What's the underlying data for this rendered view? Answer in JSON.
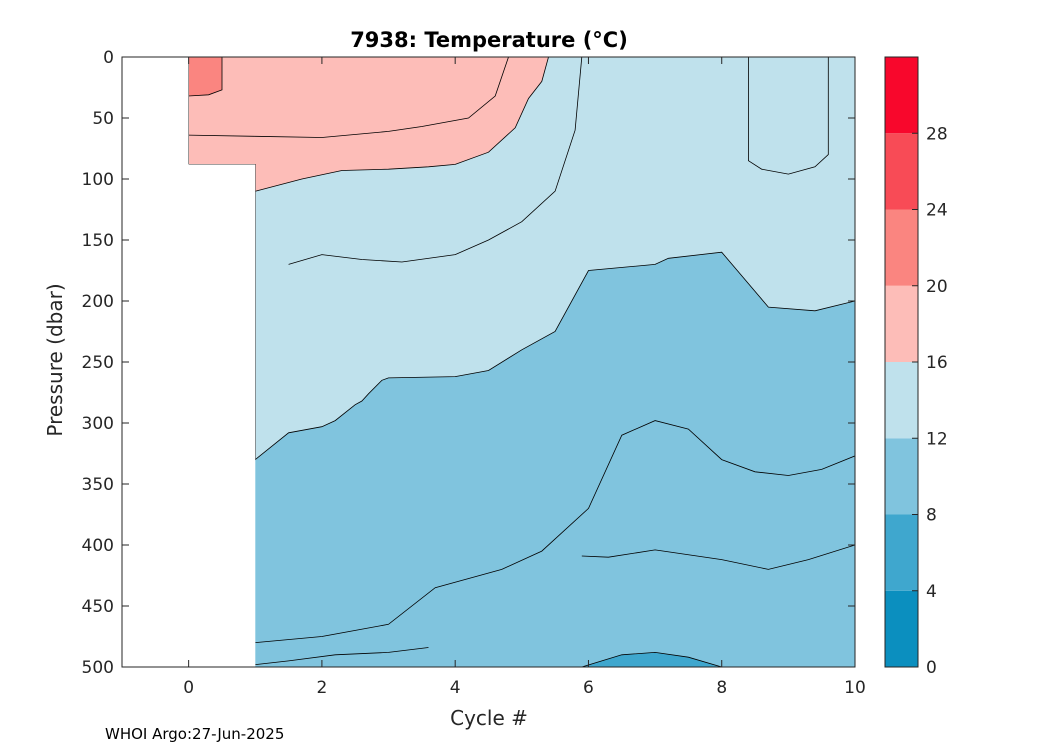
{
  "chart_data": {
    "type": "contour",
    "title": "7938:  Temperature (°C)",
    "xlabel": "Cycle #",
    "ylabel": "Pressure (dbar)",
    "xlim": [
      -1,
      10
    ],
    "ylim": [
      500,
      0
    ],
    "y_reversed": true,
    "xticks": [
      0,
      2,
      4,
      6,
      8,
      10
    ],
    "yticks": [
      0,
      50,
      100,
      150,
      200,
      250,
      300,
      350,
      400,
      450,
      500
    ],
    "colorbar": {
      "range": [
        0,
        32
      ],
      "ticks": [
        0,
        4,
        8,
        12,
        16,
        20,
        24,
        28
      ],
      "bands": [
        {
          "from": 0,
          "to": 4,
          "color": "#0B8FBF"
        },
        {
          "from": 4,
          "to": 8,
          "color": "#3FA7CE"
        },
        {
          "from": 8,
          "to": 12,
          "color": "#80C4DE"
        },
        {
          "from": 12,
          "to": 16,
          "color": "#BFE1EC"
        },
        {
          "from": 16,
          "to": 20,
          "color": "#FDBDB8"
        },
        {
          "from": 20,
          "to": 24,
          "color": "#FA8580"
        },
        {
          "from": 24,
          "to": 28,
          "color": "#F84B56"
        },
        {
          "from": 28,
          "to": 32,
          "color": "#F8072C"
        }
      ]
    },
    "contour_levels": [
      {
        "level": 20,
        "color": "#FA8580",
        "boundary": [
          [
            0,
            32
          ],
          [
            0.3,
            31
          ],
          [
            0.5,
            27
          ],
          [
            0.5,
            0
          ]
        ]
      },
      {
        "level": 16,
        "color": "#FDBDB8",
        "boundary": [
          [
            1,
            88
          ],
          [
            1,
            110
          ],
          [
            1.7,
            100
          ],
          [
            2.3,
            93
          ],
          [
            3,
            92
          ],
          [
            3.6,
            90
          ],
          [
            4,
            88
          ],
          [
            4.5,
            78
          ],
          [
            4.9,
            58
          ],
          [
            5.1,
            34
          ],
          [
            5.3,
            20
          ],
          [
            5.4,
            0
          ]
        ]
      },
      {
        "level": 12,
        "color": "#BFE1EC",
        "boundary": [
          [
            1,
            330
          ],
          [
            1.5,
            308
          ],
          [
            2,
            303
          ],
          [
            2.2,
            298
          ],
          [
            2.5,
            285
          ],
          [
            2.6,
            282
          ],
          [
            2.7,
            276
          ],
          [
            2.9,
            265
          ],
          [
            3,
            263
          ],
          [
            4,
            262
          ],
          [
            4.5,
            257
          ],
          [
            5,
            240
          ],
          [
            5.5,
            225
          ],
          [
            6,
            175
          ],
          [
            7,
            170
          ],
          [
            7.2,
            165
          ],
          [
            8,
            160
          ],
          [
            8.7,
            205
          ],
          [
            9.4,
            208
          ],
          [
            10,
            200
          ]
        ]
      },
      {
        "level": 8,
        "color": "#80C4DE",
        "boundary": [
          [
            1,
            480
          ],
          [
            2,
            475
          ],
          [
            3,
            465
          ],
          [
            3.7,
            435
          ],
          [
            4.7,
            420
          ],
          [
            5.3,
            405
          ],
          [
            5.6,
            390
          ],
          [
            6,
            370
          ],
          [
            6.5,
            310
          ],
          [
            7,
            298
          ],
          [
            7.5,
            305
          ],
          [
            8,
            330
          ],
          [
            8.5,
            340
          ],
          [
            9,
            343
          ],
          [
            9.5,
            338
          ],
          [
            10,
            327
          ]
        ]
      },
      {
        "level": 4,
        "color": "#3FA7CE",
        "boundary": [
          [
            5.9,
            500
          ],
          [
            6.5,
            490
          ],
          [
            7,
            488
          ],
          [
            7.5,
            492
          ],
          [
            8,
            500
          ]
        ]
      }
    ],
    "data_region": {
      "x_start_shallow": 0,
      "x_start_deep": 1,
      "deep_from_pressure": 88
    }
  },
  "footer": {
    "source": "WHOI Argo:27-Jun-2025"
  }
}
